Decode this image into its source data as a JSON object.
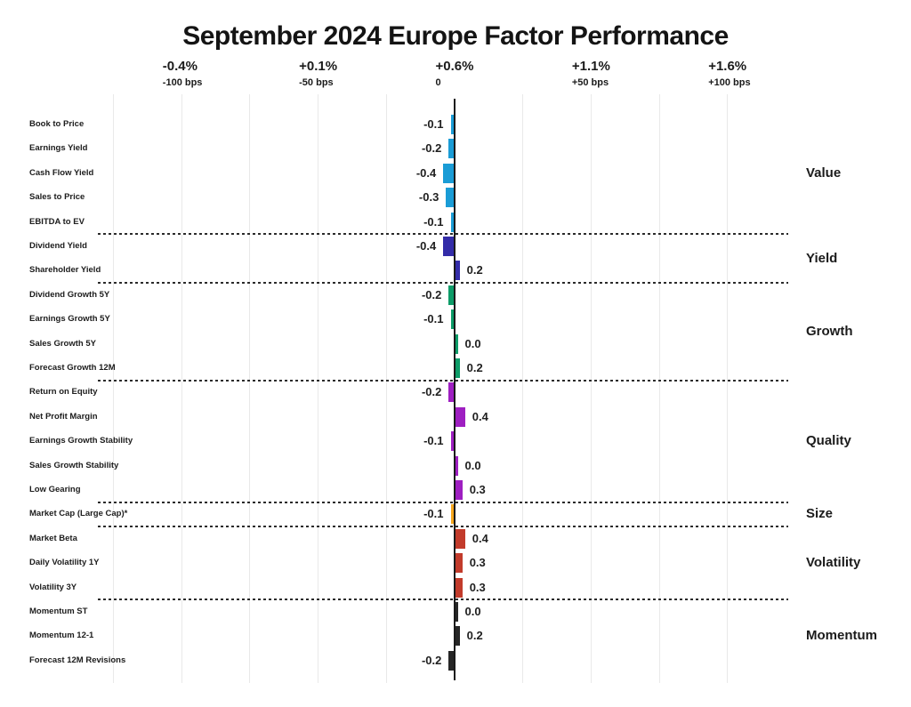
{
  "page": {
    "title": "September 2024 Europe Factor Performance"
  },
  "chart_data": {
    "type": "bar",
    "orientation": "horizontal",
    "title": "September 2024 Europe Factor Performance",
    "legend_position": "right-group-labels",
    "grid": true,
    "x_axis": {
      "ticks": [
        {
          "pct": "-0.4%",
          "bps_label": "-100 bps",
          "bps": -100
        },
        {
          "pct": "+0.1%",
          "bps_label": "-50 bps",
          "bps": -50
        },
        {
          "pct": "+0.6%",
          "bps_label": "0",
          "bps": 0
        },
        {
          "pct": "+1.1%",
          "bps_label": "+50 bps",
          "bps": 50
        },
        {
          "pct": "+1.6%",
          "bps_label": "+100 bps",
          "bps": 100
        }
      ],
      "gridlines_bps": [
        -125,
        -100,
        -75,
        -50,
        -25,
        25,
        50,
        75,
        100
      ],
      "range_bps": [
        -125,
        100
      ]
    },
    "groups": [
      {
        "name": "Value",
        "color": "#1A9CD6",
        "rows": [
          {
            "label": "Book to Price",
            "value": -0.1
          },
          {
            "label": "Earnings Yield",
            "value": -0.2
          },
          {
            "label": "Cash Flow Yield",
            "value": -0.4
          },
          {
            "label": "Sales to Price",
            "value": -0.3
          },
          {
            "label": "EBITDA to EV",
            "value": -0.1
          }
        ]
      },
      {
        "name": "Yield",
        "color": "#332CA8",
        "rows": [
          {
            "label": "Dividend Yield",
            "value": -0.4
          },
          {
            "label": "Shareholder Yield",
            "value": 0.2
          }
        ]
      },
      {
        "name": "Growth",
        "color": "#0D9C68",
        "rows": [
          {
            "label": "Dividend Growth 5Y",
            "value": -0.2
          },
          {
            "label": "Earnings Growth 5Y",
            "value": -0.1
          },
          {
            "label": "Sales Growth 5Y",
            "value": 0.0
          },
          {
            "label": "Forecast Growth 12M",
            "value": 0.2
          }
        ]
      },
      {
        "name": "Quality",
        "color": "#9E1FC1",
        "rows": [
          {
            "label": "Return on Equity",
            "value": -0.2
          },
          {
            "label": "Net Profit Margin",
            "value": 0.4
          },
          {
            "label": "Earnings Growth Stability",
            "value": -0.1
          },
          {
            "label": "Sales Growth Stability",
            "value": 0.0
          },
          {
            "label": "Low Gearing",
            "value": 0.3
          }
        ]
      },
      {
        "name": "Size",
        "color": "#F7A71C",
        "rows": [
          {
            "label": "Market Cap (Large Cap)*",
            "value": -0.1
          }
        ]
      },
      {
        "name": "Volatility",
        "color": "#C23B2B",
        "rows": [
          {
            "label": "Market Beta",
            "value": 0.4
          },
          {
            "label": "Daily Volatility 1Y",
            "value": 0.3
          },
          {
            "label": "Volatility 3Y",
            "value": 0.3
          }
        ]
      },
      {
        "name": "Momentum",
        "color": "#262626",
        "rows": [
          {
            "label": "Momentum ST",
            "value": 0.0
          },
          {
            "label": "Momentum 12-1",
            "value": 0.2
          },
          {
            "label": "Forecast 12M Revisions",
            "value": -0.2
          }
        ]
      }
    ]
  }
}
